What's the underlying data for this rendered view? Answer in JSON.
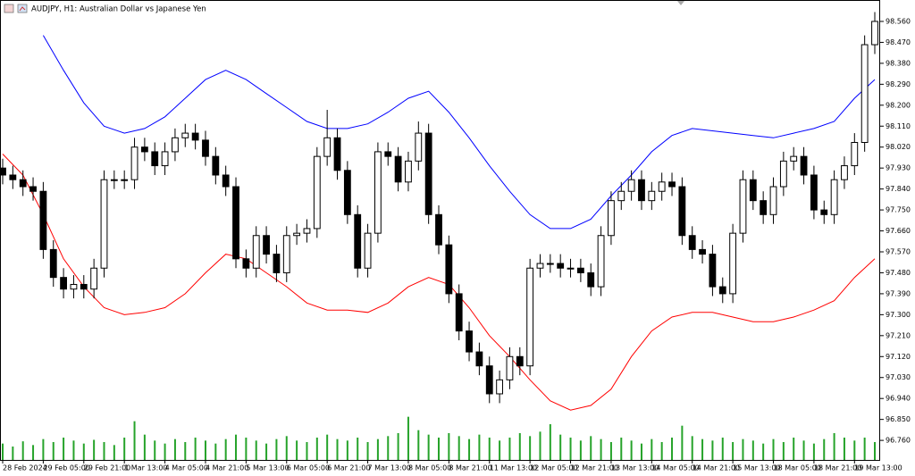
{
  "chart_data": {
    "type": "candlestick",
    "title": "AUDJPY, H1:  Australian Dollar vs Japanese Yen",
    "candle_color": "#000000",
    "x": [
      0,
      4,
      8,
      12,
      16,
      20,
      24,
      28,
      32,
      36,
      40,
      44,
      48,
      52,
      56,
      60,
      64,
      68,
      72,
      76,
      80,
      84,
      88,
      92,
      96,
      100,
      104,
      108,
      112,
      116,
      120,
      124,
      128,
      132,
      136,
      140,
      144,
      148,
      152,
      156,
      160,
      164,
      168,
      172,
      176,
      180,
      184,
      188,
      192,
      196,
      200,
      204,
      208,
      212,
      216,
      220,
      224,
      228,
      232,
      236,
      240,
      244,
      248,
      252,
      256,
      260,
      264,
      268,
      272,
      276,
      280,
      284,
      288,
      292,
      296,
      300,
      304,
      308,
      312,
      316,
      320,
      324,
      328,
      332,
      336,
      340,
      344
    ],
    "open": [
      97.93,
      97.9,
      97.88,
      97.85,
      97.83,
      97.58,
      97.46,
      97.41,
      97.43,
      97.41,
      97.5,
      97.88,
      97.88,
      97.88,
      98.02,
      98.0,
      97.94,
      98.0,
      98.06,
      98.08,
      98.05,
      97.98,
      97.9,
      97.85,
      97.54,
      97.5,
      97.64,
      97.56,
      97.48,
      97.64,
      97.65,
      97.67,
      97.98,
      98.06,
      97.92,
      97.73,
      97.5,
      97.65,
      98.0,
      97.98,
      97.87,
      97.96,
      98.08,
      97.73,
      97.6,
      97.39,
      97.23,
      97.14,
      97.08,
      96.96,
      97.02,
      97.12,
      97.08,
      97.5,
      97.52,
      97.52,
      97.5,
      97.5,
      97.48,
      97.42,
      97.64,
      97.79,
      97.83,
      97.88,
      97.79,
      97.83,
      97.87,
      97.85,
      97.64,
      97.58,
      97.56,
      97.42,
      97.39,
      97.65,
      97.88,
      97.79,
      97.73,
      97.85,
      97.96,
      97.98,
      97.9,
      97.75,
      97.73,
      97.88,
      97.94,
      98.04,
      98.46
    ],
    "high": [
      97.97,
      97.94,
      97.92,
      97.89,
      97.87,
      97.62,
      97.5,
      97.47,
      97.47,
      97.54,
      97.92,
      97.92,
      97.92,
      98.06,
      98.06,
      98.04,
      98.04,
      98.1,
      98.12,
      98.12,
      98.09,
      98.02,
      97.94,
      97.89,
      97.58,
      97.68,
      97.68,
      97.6,
      97.68,
      97.69,
      97.71,
      98.02,
      98.18,
      98.1,
      97.96,
      97.77,
      97.69,
      98.04,
      98.04,
      98.02,
      98.0,
      98.13,
      98.12,
      97.77,
      97.64,
      97.43,
      97.27,
      97.18,
      97.12,
      97.06,
      97.16,
      97.16,
      97.54,
      97.56,
      97.56,
      97.56,
      97.54,
      97.54,
      97.52,
      97.68,
      97.83,
      97.87,
      97.92,
      97.92,
      97.87,
      97.91,
      97.91,
      97.89,
      97.68,
      97.62,
      97.6,
      97.46,
      97.69,
      97.92,
      97.92,
      97.83,
      97.89,
      98.0,
      98.02,
      98.02,
      97.94,
      97.79,
      97.92,
      97.98,
      98.08,
      98.5,
      98.6
    ],
    "low": [
      97.86,
      97.84,
      97.81,
      97.79,
      97.54,
      97.42,
      97.37,
      97.37,
      97.37,
      97.37,
      97.46,
      97.84,
      97.84,
      97.84,
      97.96,
      97.9,
      97.9,
      97.96,
      98.02,
      98.01,
      97.94,
      97.86,
      97.81,
      97.5,
      97.46,
      97.46,
      97.52,
      97.44,
      97.44,
      97.6,
      97.61,
      97.63,
      97.94,
      97.88,
      97.69,
      97.46,
      97.46,
      97.61,
      97.94,
      97.83,
      97.83,
      97.92,
      97.69,
      97.56,
      97.35,
      97.19,
      97.1,
      97.04,
      96.92,
      96.92,
      96.98,
      97.04,
      97.04,
      97.46,
      97.48,
      97.46,
      97.46,
      97.44,
      97.38,
      97.38,
      97.6,
      97.75,
      97.79,
      97.75,
      97.75,
      97.79,
      97.81,
      97.6,
      97.54,
      97.52,
      97.38,
      97.35,
      97.35,
      97.61,
      97.75,
      97.69,
      97.69,
      97.81,
      97.92,
      97.86,
      97.71,
      97.69,
      97.69,
      97.84,
      97.9,
      98.0,
      98.42
    ],
    "close": [
      97.9,
      97.88,
      97.85,
      97.83,
      97.58,
      97.46,
      97.41,
      97.43,
      97.41,
      97.5,
      97.88,
      97.88,
      97.88,
      98.02,
      98.0,
      97.94,
      98.0,
      98.06,
      98.08,
      98.05,
      97.98,
      97.9,
      97.85,
      97.54,
      97.5,
      97.64,
      97.56,
      97.48,
      97.64,
      97.65,
      97.67,
      97.98,
      98.06,
      97.92,
      97.73,
      97.5,
      97.65,
      98.0,
      97.98,
      97.87,
      97.96,
      98.08,
      97.73,
      97.6,
      97.39,
      97.23,
      97.14,
      97.08,
      96.96,
      97.02,
      97.12,
      97.08,
      97.5,
      97.52,
      97.52,
      97.5,
      97.5,
      97.48,
      97.42,
      97.64,
      97.79,
      97.83,
      97.88,
      97.79,
      97.83,
      97.87,
      97.85,
      97.64,
      97.58,
      97.56,
      97.42,
      97.39,
      97.65,
      97.88,
      97.79,
      97.73,
      97.85,
      97.96,
      97.98,
      97.9,
      97.75,
      97.73,
      97.88,
      97.94,
      98.04,
      98.46,
      98.56
    ],
    "volume": {
      "color": "#26a32a",
      "lim": [
        0,
        60
      ],
      "values": [
        22,
        18,
        25,
        20,
        28,
        24,
        30,
        26,
        22,
        27,
        24,
        20,
        30,
        52,
        34,
        26,
        22,
        28,
        24,
        30,
        26,
        22,
        28,
        34,
        30,
        26,
        22,
        28,
        32,
        26,
        24,
        30,
        34,
        28,
        26,
        30,
        24,
        28,
        32,
        36,
        58,
        40,
        34,
        30,
        36,
        32,
        28,
        34,
        30,
        26,
        30,
        36,
        32,
        38,
        48,
        34,
        30,
        26,
        32,
        28,
        24,
        30,
        26,
        22,
        28,
        24,
        30,
        46,
        32,
        28,
        26,
        30,
        24,
        28,
        26,
        22,
        28,
        24,
        30,
        26,
        22,
        28,
        36,
        30,
        26,
        30,
        24
      ]
    },
    "overlay_x": [
      0,
      8,
      16,
      24,
      32,
      40,
      48,
      56,
      64,
      72,
      80,
      88,
      96,
      104,
      112,
      120,
      128,
      136,
      144,
      152,
      160,
      168,
      176,
      184,
      192,
      200,
      208,
      216,
      224,
      232,
      240,
      248,
      256,
      264,
      272,
      280,
      288,
      296,
      304,
      312,
      320,
      328,
      336,
      344
    ],
    "overlays": [
      {
        "color": "#0000ff",
        "values": [
          null,
          null,
          98.5,
          98.35,
          98.21,
          98.11,
          98.08,
          98.1,
          98.15,
          98.23,
          98.31,
          98.35,
          98.31,
          98.25,
          98.19,
          98.13,
          98.1,
          98.1,
          98.12,
          98.17,
          98.23,
          98.26,
          98.17,
          98.06,
          97.94,
          97.83,
          97.73,
          97.67,
          97.67,
          97.71,
          97.81,
          97.9,
          98.0,
          98.07,
          98.1,
          98.09,
          98.08,
          98.07,
          98.06,
          98.08,
          98.1,
          98.13,
          98.23,
          98.31
        ]
      },
      {
        "color": "#ff0000",
        "values": [
          97.99,
          97.9,
          97.73,
          97.54,
          97.42,
          97.33,
          97.3,
          97.31,
          97.33,
          97.39,
          97.48,
          97.56,
          97.54,
          97.48,
          97.42,
          97.35,
          97.32,
          97.32,
          97.31,
          97.35,
          97.42,
          97.46,
          97.43,
          97.33,
          97.21,
          97.12,
          97.02,
          96.93,
          96.89,
          96.91,
          96.98,
          97.12,
          97.23,
          97.29,
          97.31,
          97.31,
          97.29,
          97.27,
          97.27,
          97.29,
          97.32,
          97.36,
          97.46,
          97.54
        ]
      }
    ],
    "xlim": [
      0,
      344
    ],
    "xticks": [
      {
        "value": 0,
        "label": "28 Feb 2024"
      },
      {
        "value": 16,
        "label": "29 Feb 05:00"
      },
      {
        "value": 32,
        "label": "29 Feb 21:00"
      },
      {
        "value": 48,
        "label": "1 Mar 13:00"
      },
      {
        "value": 64,
        "label": "4 Mar 05:00"
      },
      {
        "value": 80,
        "label": "4 Mar 21:00"
      },
      {
        "value": 96,
        "label": "5 Mar 13:00"
      },
      {
        "value": 112,
        "label": "6 Mar 05:00"
      },
      {
        "value": 128,
        "label": "6 Mar 21:00"
      },
      {
        "value": 144,
        "label": "7 Mar 13:00"
      },
      {
        "value": 160,
        "label": "8 Mar 05:00"
      },
      {
        "value": 176,
        "label": "8 Mar 21:00"
      },
      {
        "value": 192,
        "label": "11 Mar 13:00"
      },
      {
        "value": 208,
        "label": "12 Mar 05:00"
      },
      {
        "value": 224,
        "label": "12 Mar 21:00"
      },
      {
        "value": 240,
        "label": "13 Mar 13:00"
      },
      {
        "value": 256,
        "label": "14 Mar 05:00"
      },
      {
        "value": 272,
        "label": "14 Mar 21:00"
      },
      {
        "value": 288,
        "label": "15 Mar 13:00"
      },
      {
        "value": 304,
        "label": "18 Mar 05:00"
      },
      {
        "value": 320,
        "label": "18 Mar 21:00"
      },
      {
        "value": 336,
        "label": "19 Mar 13:00"
      }
    ],
    "ylim": [
      96.676,
      98.652
    ],
    "yticks": [
      {
        "value": 98.56,
        "label": "98.560"
      },
      {
        "value": 98.47,
        "label": "98.470"
      },
      {
        "value": 98.38,
        "label": "98.380"
      },
      {
        "value": 98.29,
        "label": "98.290"
      },
      {
        "value": 98.2,
        "label": "98.200"
      },
      {
        "value": 98.11,
        "label": "98.110"
      },
      {
        "value": 98.02,
        "label": "98.020"
      },
      {
        "value": 97.93,
        "label": "97.930"
      },
      {
        "value": 97.84,
        "label": "97.840"
      },
      {
        "value": 97.75,
        "label": "97.750"
      },
      {
        "value": 97.66,
        "label": "97.660"
      },
      {
        "value": 97.57,
        "label": "97.570"
      },
      {
        "value": 97.48,
        "label": "97.480"
      },
      {
        "value": 97.39,
        "label": "97.390"
      },
      {
        "value": 97.3,
        "label": "97.300"
      },
      {
        "value": 97.21,
        "label": "97.210"
      },
      {
        "value": 97.12,
        "label": "97.120"
      },
      {
        "value": 97.03,
        "label": "97.030"
      },
      {
        "value": 96.94,
        "label": "96.940"
      },
      {
        "value": 96.85,
        "label": "96.850"
      },
      {
        "value": 96.76,
        "label": "96.760"
      }
    ]
  }
}
